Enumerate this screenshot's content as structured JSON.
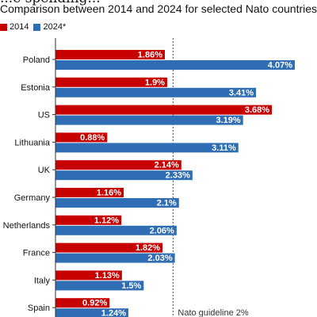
{
  "header": {
    "title_fragment": "...e spending...",
    "subtitle": "Comparison between 2014 and 2024 for selected Nato countries"
  },
  "colors": {
    "y2014": "#c70000",
    "y2024": "#2f6eb5",
    "guideline": "#555555"
  },
  "chart_data": {
    "type": "bar",
    "orientation": "horizontal",
    "title": "",
    "subtitle": "Comparison between 2014 and 2024 for selected Nato countries",
    "categories": [
      "Poland",
      "Estonia",
      "US",
      "Lithuania",
      "UK",
      "Germany",
      "Netherlands",
      "France",
      "Italy",
      "Spain"
    ],
    "series": [
      {
        "name": "2014",
        "values": [
          1.86,
          1.9,
          3.68,
          0.88,
          2.14,
          1.16,
          1.12,
          1.82,
          1.13,
          0.92
        ],
        "labels": [
          "1.86%",
          "1.9%",
          "3.68%",
          "0.88%",
          "2.14%",
          "1.16%",
          "1.12%",
          "1.82%",
          "1.13%",
          "0.92%"
        ]
      },
      {
        "name": "2024*",
        "values": [
          4.07,
          3.41,
          3.19,
          3.11,
          2.33,
          2.1,
          2.06,
          2.03,
          1.5,
          1.24
        ],
        "labels": [
          "4.07%",
          "3.41%",
          "3.19%",
          "3.11%",
          "2.33%",
          "2.1%",
          "2.06%",
          "2.03%",
          "1.5%",
          "1.24%"
        ]
      }
    ],
    "reference_line": {
      "value": 2,
      "label": "Nato guideline 2%"
    },
    "xlim": [
      0,
      4.07
    ],
    "grid": false,
    "legend": "top-left"
  }
}
